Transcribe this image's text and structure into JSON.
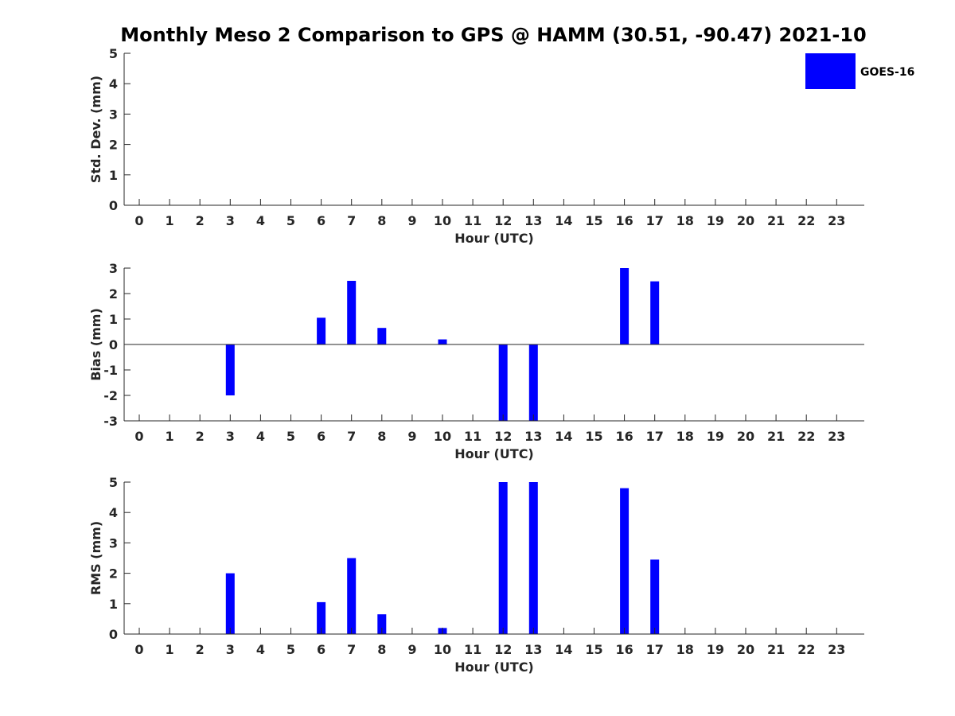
{
  "title": "Monthly Meso 2 Comparison to GPS @ HAMM (30.51, -90.47) 2021-10",
  "colors": {
    "bar": "#0000ff",
    "axis": "#262626"
  },
  "chart_data": [
    {
      "type": "bar",
      "xlabel": "Hour (UTC)",
      "ylabel": "Std. Dev. (mm)",
      "categories": [
        0,
        1,
        2,
        3,
        4,
        5,
        6,
        7,
        8,
        9,
        10,
        11,
        12,
        13,
        14,
        15,
        16,
        17,
        18,
        19,
        20,
        21,
        22,
        23
      ],
      "ylim": [
        0,
        5
      ],
      "yticks": [
        0,
        1,
        2,
        3,
        4,
        5
      ],
      "series": [
        {
          "name": "GOES-16",
          "values": [
            0,
            0,
            0,
            0,
            0,
            0,
            0,
            0,
            0,
            0,
            0,
            0,
            0,
            0,
            0,
            0,
            0,
            0,
            0,
            0,
            0,
            0,
            0,
            0
          ]
        }
      ],
      "legend": {
        "placement": "top-right",
        "label": "GOES-16"
      }
    },
    {
      "type": "bar",
      "xlabel": "Hour (UTC)",
      "ylabel": "Bias (mm)",
      "categories": [
        0,
        1,
        2,
        3,
        4,
        5,
        6,
        7,
        8,
        9,
        10,
        11,
        12,
        13,
        14,
        15,
        16,
        17,
        18,
        19,
        20,
        21,
        22,
        23
      ],
      "ylim": [
        -3,
        3
      ],
      "yticks": [
        -3,
        -2,
        -1,
        0,
        1,
        2,
        3
      ],
      "zero_line": true,
      "series": [
        {
          "name": "GOES-16",
          "values": [
            0,
            0,
            0,
            -2.0,
            0,
            0,
            1.05,
            2.5,
            0.65,
            0,
            0.2,
            0,
            -3.0,
            -3.0,
            0,
            0,
            3.0,
            2.48,
            0,
            0,
            0,
            0,
            0,
            0
          ]
        }
      ]
    },
    {
      "type": "bar",
      "xlabel": "Hour (UTC)",
      "ylabel": "RMS (mm)",
      "categories": [
        0,
        1,
        2,
        3,
        4,
        5,
        6,
        7,
        8,
        9,
        10,
        11,
        12,
        13,
        14,
        15,
        16,
        17,
        18,
        19,
        20,
        21,
        22,
        23
      ],
      "ylim": [
        0,
        5
      ],
      "yticks": [
        0,
        1,
        2,
        3,
        4,
        5
      ],
      "series": [
        {
          "name": "GOES-16",
          "values": [
            0,
            0,
            0,
            2.0,
            0,
            0,
            1.05,
            2.5,
            0.65,
            0,
            0.2,
            0,
            5.0,
            5.0,
            0,
            0,
            4.8,
            2.45,
            0,
            0,
            0,
            0,
            0,
            0
          ]
        }
      ]
    }
  ]
}
